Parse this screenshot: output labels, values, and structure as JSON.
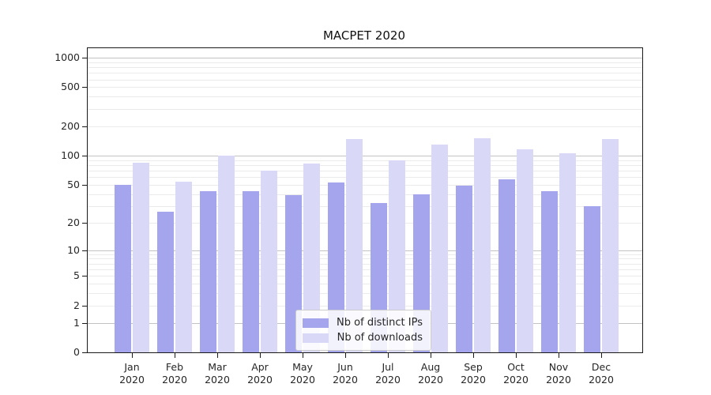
{
  "title": "MACPET 2020",
  "chart_data": {
    "type": "bar",
    "title": "MACPET 2020",
    "y_scale": "log1p",
    "ylim": [
      0,
      1250
    ],
    "y_ticks": [
      0,
      1,
      2,
      5,
      10,
      20,
      50,
      100,
      200,
      500,
      1000
    ],
    "grid": "both",
    "grid_major_color": "#c3c3c3",
    "grid_minor_color": "#ebebeb",
    "categories": [
      "Jan",
      "Feb",
      "Mar",
      "Apr",
      "May",
      "Jun",
      "Jul",
      "Aug",
      "Sep",
      "Oct",
      "Nov",
      "Dec"
    ],
    "x_year_label": "2020",
    "legend_position": "lower center",
    "series": [
      {
        "name": "Nb of distinct IPs",
        "color": "#a5a5ee",
        "values": [
          50,
          26,
          43,
          43,
          39,
          53,
          32,
          40,
          49,
          57,
          43,
          30
        ]
      },
      {
        "name": "Nb of downloads",
        "color": "#d9d9f7",
        "values": [
          85,
          54,
          99,
          70,
          83,
          147,
          89,
          130,
          150,
          117,
          105,
          149
        ]
      }
    ]
  }
}
